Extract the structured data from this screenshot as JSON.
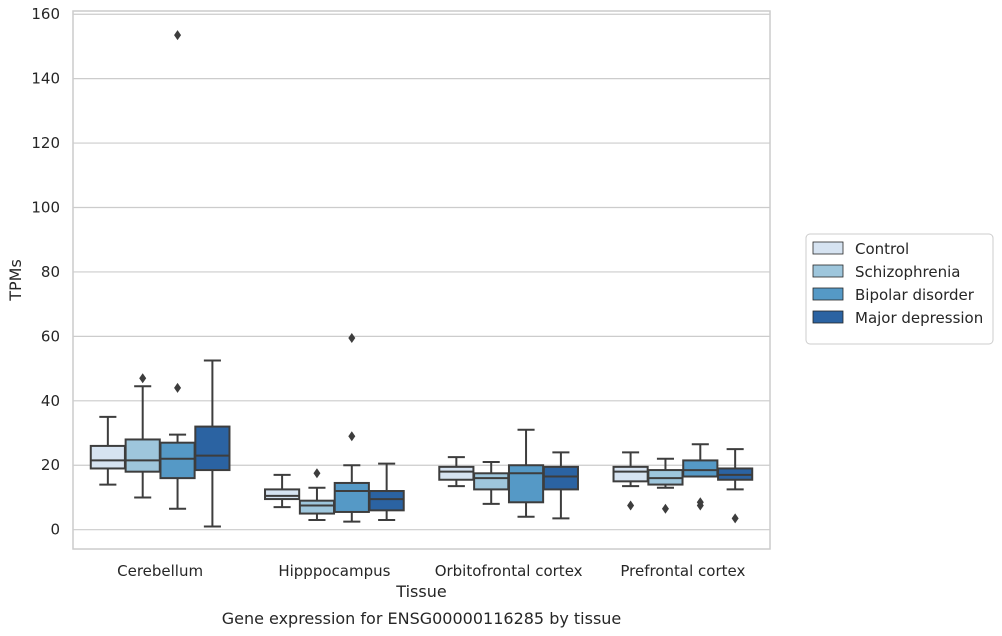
{
  "chart_data": {
    "type": "box",
    "xlabel": "Tissue",
    "ylabel": "TPMs",
    "caption": "Gene expression for ENSG00000116285 by tissue",
    "ylim": [
      -6,
      161
    ],
    "yticks": [
      0,
      20,
      40,
      60,
      80,
      100,
      120,
      140,
      160
    ],
    "grid": true,
    "legend_position": "right",
    "categories": [
      "Cerebellum",
      "Hipppocampus",
      "Orbitofrontal cortex",
      "Prefrontal cortex"
    ],
    "series": [
      {
        "name": "Control",
        "color": "#d6e3f1",
        "boxes": [
          {
            "whislo": 14,
            "q1": 19,
            "med": 21.5,
            "q3": 26,
            "whishi": 35,
            "fliers": []
          },
          {
            "whislo": 7,
            "q1": 9.5,
            "med": 10.5,
            "q3": 12.5,
            "whishi": 17,
            "fliers": []
          },
          {
            "whislo": 13.5,
            "q1": 15.5,
            "med": 18,
            "q3": 19.5,
            "whishi": 22.5,
            "fliers": []
          },
          {
            "whislo": 13.5,
            "q1": 15,
            "med": 18,
            "q3": 19.5,
            "whishi": 24,
            "fliers": [
              7.5
            ]
          }
        ]
      },
      {
        "name": "Schizophrenia",
        "color": "#9ec6dc",
        "boxes": [
          {
            "whislo": 10,
            "q1": 18,
            "med": 21.5,
            "q3": 28,
            "whishi": 44.5,
            "fliers": [
              47
            ]
          },
          {
            "whislo": 3,
            "q1": 5,
            "med": 7.5,
            "q3": 9,
            "whishi": 13,
            "fliers": [
              17.5
            ]
          },
          {
            "whislo": 8,
            "q1": 12.5,
            "med": 16,
            "q3": 17.5,
            "whishi": 21,
            "fliers": []
          },
          {
            "whislo": 13,
            "q1": 14,
            "med": 16,
            "q3": 18.5,
            "whishi": 22,
            "fliers": [
              6.5
            ]
          }
        ]
      },
      {
        "name": "Bipolar disorder",
        "color": "#5599c6",
        "boxes": [
          {
            "whislo": 6.5,
            "q1": 16,
            "med": 22,
            "q3": 27,
            "whishi": 29.5,
            "fliers": [
              44,
              153.5
            ]
          },
          {
            "whislo": 2.5,
            "q1": 5.5,
            "med": 12,
            "q3": 14.5,
            "whishi": 20,
            "fliers": [
              29,
              59.5
            ]
          },
          {
            "whislo": 4,
            "q1": 8.5,
            "med": 17.5,
            "q3": 20,
            "whishi": 31,
            "fliers": []
          },
          {
            "whislo": 16.5,
            "q1": 16.5,
            "med": 18.5,
            "q3": 21.5,
            "whishi": 26.5,
            "fliers": [
              7.5,
              8.5
            ]
          }
        ]
      },
      {
        "name": "Major depression",
        "color": "#2b63a2",
        "boxes": [
          {
            "whislo": 1,
            "q1": 18.5,
            "med": 23,
            "q3": 32,
            "whishi": 52.5,
            "fliers": []
          },
          {
            "whislo": 3,
            "q1": 6,
            "med": 9.5,
            "q3": 12,
            "whishi": 20.5,
            "fliers": []
          },
          {
            "whislo": 3.5,
            "q1": 12.5,
            "med": 16.5,
            "q3": 19.5,
            "whishi": 24,
            "fliers": []
          },
          {
            "whislo": 12.5,
            "q1": 15.5,
            "med": 17,
            "q3": 19,
            "whishi": 25,
            "fliers": [
              3.5
            ]
          }
        ]
      }
    ]
  }
}
